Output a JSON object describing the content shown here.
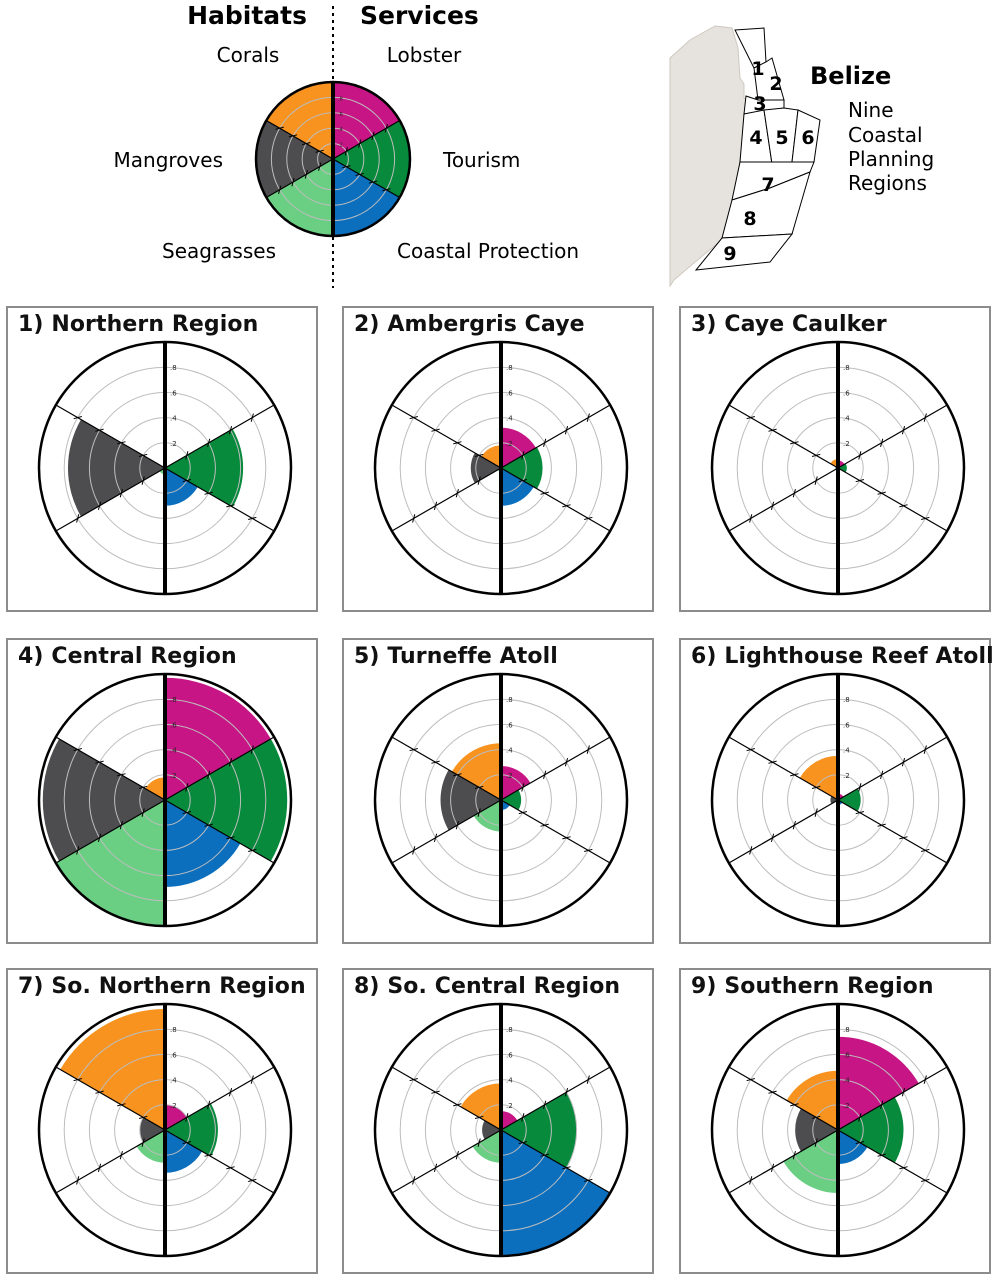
{
  "colors": {
    "corals": "#f7931e",
    "mangroves": "#4d4d4f",
    "seagrasses": "#6bcf83",
    "lobster": "#c71585",
    "tourism": "#078a3c",
    "coastal_protection": "#0b6fbe",
    "grid": "#bdbdbd",
    "axis": "#000000",
    "land": "#e6e2dd"
  },
  "legend": {
    "habitats_title": "Habitats",
    "services_title": "Services",
    "corals": "Corals",
    "mangroves": "Mangroves",
    "seagrasses": "Seagrasses",
    "lobster": "Lobster",
    "tourism": "Tourism",
    "coastal_protection": "Coastal Protection"
  },
  "map": {
    "title": "Belize",
    "caption": [
      "Nine",
      "Coastal",
      "Planning",
      "Regions"
    ],
    "region_numbers": [
      "1",
      "2",
      "3",
      "4",
      "5",
      "6",
      "7",
      "8",
      "9"
    ]
  },
  "chart_data": {
    "type": "polar-area",
    "scale_max": 1.0,
    "rings": [
      0.2,
      0.4,
      0.6,
      0.8,
      1.0
    ],
    "tick_labels": [
      ".2",
      ".4",
      ".6",
      ".8"
    ],
    "sector_order": [
      "Lobster",
      "Tourism",
      "Coastal Protection",
      "Seagrasses",
      "Mangroves",
      "Corals"
    ],
    "panels": [
      {
        "title": "1) Northern Region",
        "values": {
          "Lobster": 0.0,
          "Tourism": 0.62,
          "Coastal Protection": 0.3,
          "Seagrasses": 0.05,
          "Mangroves": 0.77,
          "Corals": 0.0
        }
      },
      {
        "title": "2) Ambergris Caye",
        "values": {
          "Lobster": 0.32,
          "Tourism": 0.33,
          "Coastal Protection": 0.3,
          "Seagrasses": 0.03,
          "Mangroves": 0.24,
          "Corals": 0.18
        }
      },
      {
        "title": "3) Caye Caulker",
        "values": {
          "Lobster": 0.06,
          "Tourism": 0.07,
          "Coastal Protection": 0.02,
          "Seagrasses": 0.02,
          "Mangroves": 0.02,
          "Corals": 0.07
        }
      },
      {
        "title": "4) Central Region",
        "values": {
          "Lobster": 0.97,
          "Tourism": 0.97,
          "Coastal Protection": 0.69,
          "Seagrasses": 1.0,
          "Mangroves": 0.97,
          "Corals": 0.18
        }
      },
      {
        "title": "5) Turneffe Atoll",
        "values": {
          "Lobster": 0.27,
          "Tourism": 0.16,
          "Coastal Protection": 0.08,
          "Seagrasses": 0.25,
          "Mangroves": 0.48,
          "Corals": 0.45
        }
      },
      {
        "title": "6) Lighthouse Reef Atoll",
        "values": {
          "Lobster": 0.05,
          "Tourism": 0.18,
          "Coastal Protection": 0.04,
          "Seagrasses": 0.02,
          "Mangroves": 0.06,
          "Corals": 0.35
        }
      },
      {
        "title": "7) So. Northern Region",
        "values": {
          "Lobster": 0.2,
          "Tourism": 0.42,
          "Coastal Protection": 0.34,
          "Seagrasses": 0.26,
          "Mangroves": 0.2,
          "Corals": 0.96
        }
      },
      {
        "title": "8) So. Central Region",
        "values": {
          "Lobster": 0.15,
          "Tourism": 0.6,
          "Coastal Protection": 1.0,
          "Seagrasses": 0.26,
          "Mangroves": 0.15,
          "Corals": 0.37
        }
      },
      {
        "title": "9) Southern Region",
        "values": {
          "Lobster": 0.74,
          "Tourism": 0.52,
          "Coastal Protection": 0.27,
          "Seagrasses": 0.5,
          "Mangroves": 0.34,
          "Corals": 0.47
        }
      }
    ]
  }
}
